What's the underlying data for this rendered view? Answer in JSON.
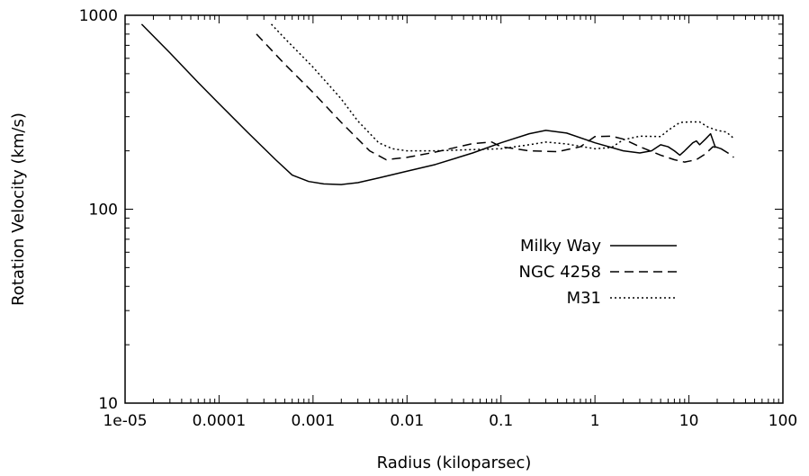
{
  "chart_data": {
    "type": "line",
    "xlabel": "Radius (kiloparsec)",
    "ylabel": "Rotation Velocity (km/s)",
    "xscale": "log",
    "yscale": "log",
    "xlim": [
      1e-05,
      100
    ],
    "ylim": [
      10,
      1000
    ],
    "grid": false,
    "legend_position": "center-right",
    "x_ticks": [
      {
        "value": 1e-05,
        "label": "1e-05"
      },
      {
        "value": 0.0001,
        "label": "0.0001"
      },
      {
        "value": 0.001,
        "label": "0.001"
      },
      {
        "value": 0.01,
        "label": "0.01"
      },
      {
        "value": 0.1,
        "label": "0.1"
      },
      {
        "value": 1,
        "label": "1"
      },
      {
        "value": 10,
        "label": "10"
      },
      {
        "value": 100,
        "label": "100"
      }
    ],
    "y_ticks": [
      {
        "value": 10,
        "label": "10"
      },
      {
        "value": 100,
        "label": "100"
      },
      {
        "value": 1000,
        "label": "1000"
      }
    ],
    "series": [
      {
        "name": "Milky Way",
        "dash": "solid",
        "points": [
          [
            1.5e-05,
            900
          ],
          [
            3e-05,
            640
          ],
          [
            6e-05,
            450
          ],
          [
            0.0001,
            350
          ],
          [
            0.0002,
            250
          ],
          [
            0.0004,
            180
          ],
          [
            0.0006,
            150
          ],
          [
            0.0009,
            139
          ],
          [
            0.0013,
            135
          ],
          [
            0.002,
            134
          ],
          [
            0.003,
            137
          ],
          [
            0.005,
            145
          ],
          [
            0.01,
            157
          ],
          [
            0.02,
            170
          ],
          [
            0.05,
            195
          ],
          [
            0.1,
            220
          ],
          [
            0.2,
            245
          ],
          [
            0.3,
            255
          ],
          [
            0.5,
            247
          ],
          [
            1,
            220
          ],
          [
            2,
            200
          ],
          [
            3,
            195
          ],
          [
            4,
            200
          ],
          [
            5,
            215
          ],
          [
            6,
            210
          ],
          [
            7,
            200
          ],
          [
            8,
            190
          ],
          [
            9,
            200
          ],
          [
            11,
            220
          ],
          [
            12,
            225
          ],
          [
            13,
            215
          ],
          [
            15,
            230
          ],
          [
            17,
            245
          ],
          [
            19,
            210
          ],
          [
            22,
            205
          ]
        ]
      },
      {
        "name": "NGC 4258",
        "dash": "dashed",
        "points": [
          [
            0.00025,
            800
          ],
          [
            0.0005,
            560
          ],
          [
            0.001,
            400
          ],
          [
            0.002,
            280
          ],
          [
            0.004,
            200
          ],
          [
            0.006,
            180
          ],
          [
            0.01,
            185
          ],
          [
            0.02,
            197
          ],
          [
            0.05,
            218
          ],
          [
            0.08,
            222
          ],
          [
            0.1,
            210
          ],
          [
            0.2,
            200
          ],
          [
            0.4,
            198
          ],
          [
            0.7,
            210
          ],
          [
            1,
            237
          ],
          [
            1.5,
            238
          ],
          [
            2,
            230
          ],
          [
            3,
            210
          ],
          [
            5,
            190
          ],
          [
            7,
            180
          ],
          [
            9,
            175
          ],
          [
            12,
            180
          ],
          [
            15,
            193
          ],
          [
            18,
            210
          ],
          [
            22,
            205
          ],
          [
            26,
            195
          ],
          [
            30,
            185
          ]
        ]
      },
      {
        "name": "M31",
        "dash": "dotted",
        "points": [
          [
            0.00036,
            900
          ],
          [
            0.0005,
            760
          ],
          [
            0.001,
            540
          ],
          [
            0.002,
            370
          ],
          [
            0.003,
            285
          ],
          [
            0.005,
            220
          ],
          [
            0.007,
            205
          ],
          [
            0.01,
            200
          ],
          [
            0.02,
            200
          ],
          [
            0.05,
            203
          ],
          [
            0.1,
            205
          ],
          [
            0.2,
            215
          ],
          [
            0.3,
            222
          ],
          [
            0.5,
            217
          ],
          [
            1,
            205
          ],
          [
            1.5,
            208
          ],
          [
            2,
            228
          ],
          [
            3,
            238
          ],
          [
            5,
            237
          ],
          [
            6,
            255
          ],
          [
            8,
            280
          ],
          [
            10,
            282
          ],
          [
            13,
            282
          ],
          [
            16,
            265
          ],
          [
            20,
            255
          ],
          [
            25,
            250
          ],
          [
            30,
            232
          ]
        ]
      }
    ]
  }
}
